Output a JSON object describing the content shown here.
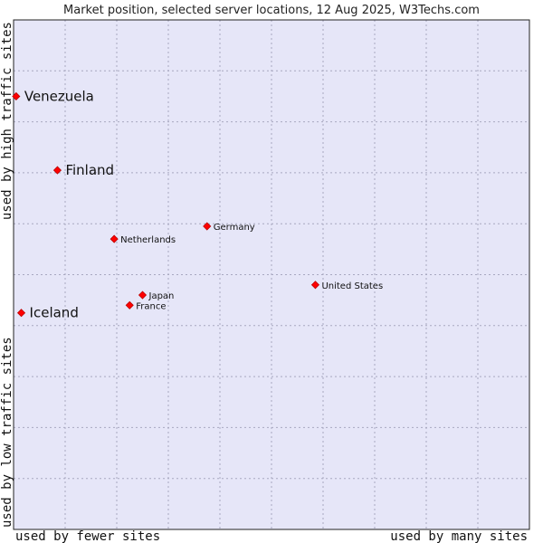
{
  "chart_data": {
    "type": "scatter",
    "title": "Market position, selected server locations, 12 Aug 2025, W3Techs.com",
    "x_axis": {
      "left_label": "used by fewer sites",
      "right_label": "used by many sites",
      "range": [
        0,
        100
      ]
    },
    "y_axis": {
      "bottom_label": "used by low traffic sites",
      "top_label": "used by high traffic sites",
      "range": [
        0,
        100
      ]
    },
    "grid": true,
    "points": [
      {
        "name": "Venezuela",
        "x": 0.5,
        "y": 85,
        "label_size": "large"
      },
      {
        "name": "Finland",
        "x": 8.5,
        "y": 70.5,
        "label_size": "large"
      },
      {
        "name": "Germany",
        "x": 37.5,
        "y": 59.5,
        "label_size": "small"
      },
      {
        "name": "Netherlands",
        "x": 19.5,
        "y": 57,
        "label_size": "small"
      },
      {
        "name": "United States",
        "x": 58.5,
        "y": 48,
        "label_size": "small"
      },
      {
        "name": "Japan",
        "x": 25,
        "y": 46,
        "label_size": "small"
      },
      {
        "name": "France",
        "x": 22.5,
        "y": 44,
        "label_size": "small"
      },
      {
        "name": "Iceland",
        "x": 1.5,
        "y": 42.5,
        "label_size": "large"
      }
    ]
  },
  "colors": {
    "plot_bg": "#e6e6f8",
    "grid": "#a8a8c0",
    "border": "#222222",
    "marker": "#ff0000",
    "marker_edge": "#bb0000"
  }
}
